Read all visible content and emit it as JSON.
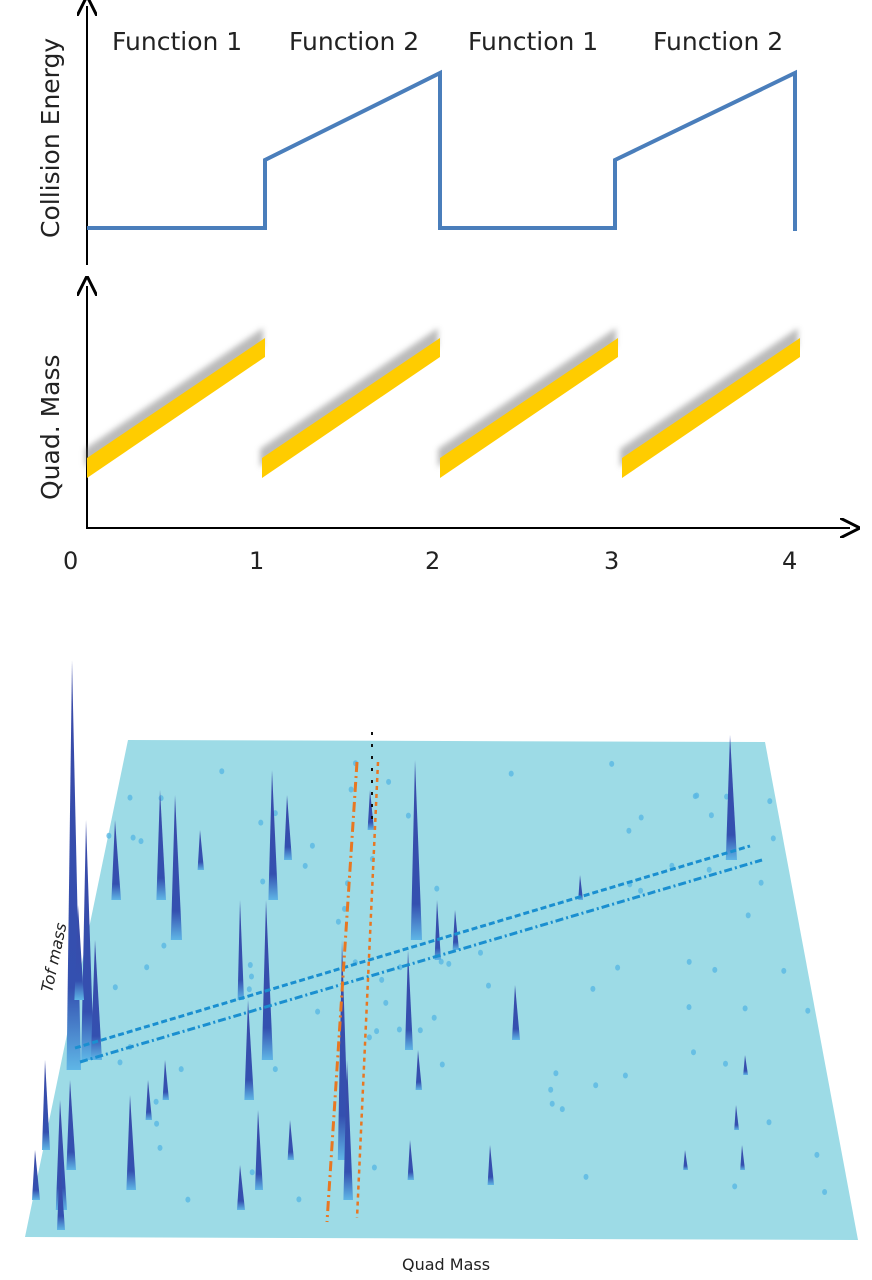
{
  "top_panel": {
    "ylabel": "Collision Energy",
    "function_labels": [
      "Function 1",
      "Function 2",
      "Function 1",
      "Function 2"
    ],
    "line_color": "#4a7ebb"
  },
  "middle_panel": {
    "ylabel": "Quad. Mass",
    "band_color": "#ffcc00",
    "x_ticks": [
      "0",
      "1",
      "2",
      "3",
      "4"
    ]
  },
  "bottom_panel": {
    "ylabel": "Tof mass",
    "xlabel": "Quad Mass",
    "surface_color": "#9ddbe6",
    "peak_color": "#3a4aa8",
    "diagonal_color": "#1a8fd0",
    "vertical_color": "#e87722"
  }
}
